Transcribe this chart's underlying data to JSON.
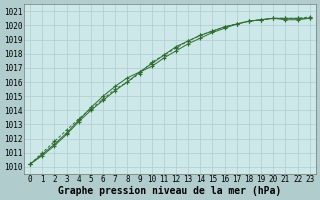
{
  "xlabel": "Graphe pression niveau de la mer (hPa)",
  "ylabel": "",
  "plot_bg_color": "#cde8e8",
  "grid_color": "#b0cccc",
  "line_color": "#2d6e2d",
  "x_values": [
    0,
    1,
    2,
    3,
    4,
    5,
    6,
    7,
    8,
    9,
    10,
    11,
    12,
    13,
    14,
    15,
    16,
    17,
    18,
    19,
    20,
    21,
    22,
    23
  ],
  "y_values1": [
    1010.2,
    1010.8,
    1011.5,
    1012.3,
    1013.2,
    1014.0,
    1014.7,
    1015.4,
    1016.0,
    1016.7,
    1017.3,
    1017.9,
    1018.5,
    1018.9,
    1019.3,
    1019.6,
    1019.9,
    1020.1,
    1020.3,
    1020.4,
    1020.5,
    1020.5,
    1020.5,
    1020.5
  ],
  "y_values2": [
    1010.2,
    1011.0,
    1011.8,
    1012.6,
    1013.4,
    1014.1,
    1014.8,
    1015.5,
    1016.0,
    1016.6,
    1017.4,
    1017.9,
    1018.4,
    1018.9,
    1019.3,
    1019.6,
    1019.9,
    1020.1,
    1020.3,
    1020.4,
    1020.5,
    1020.5,
    1020.5,
    1020.6
  ],
  "y_values3": [
    1010.2,
    1010.9,
    1011.6,
    1012.4,
    1013.3,
    1014.2,
    1015.0,
    1015.7,
    1016.3,
    1016.7,
    1017.1,
    1017.7,
    1018.2,
    1018.7,
    1019.1,
    1019.5,
    1019.8,
    1020.1,
    1020.3,
    1020.4,
    1020.5,
    1020.4,
    1020.4,
    1020.5
  ],
  "ylim": [
    1009.5,
    1021.5
  ],
  "xlim": [
    -0.5,
    23.5
  ],
  "yticks": [
    1010,
    1011,
    1012,
    1013,
    1014,
    1015,
    1016,
    1017,
    1018,
    1019,
    1020,
    1021
  ],
  "xticks": [
    0,
    1,
    2,
    3,
    4,
    5,
    6,
    7,
    8,
    9,
    10,
    11,
    12,
    13,
    14,
    15,
    16,
    17,
    18,
    19,
    20,
    21,
    22,
    23
  ],
  "tick_fontsize": 5.5,
  "xlabel_fontsize": 7
}
